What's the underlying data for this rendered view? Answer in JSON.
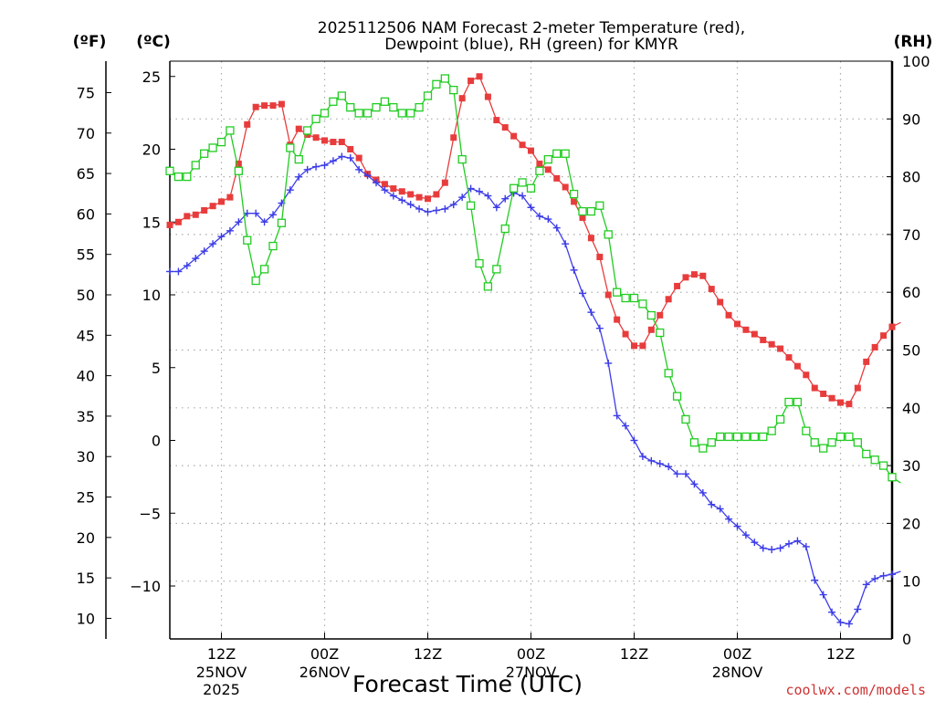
{
  "chart_data": {
    "type": "line",
    "title_line1": "2025112506 NAM Forecast 2-meter Temperature (red),",
    "title_line2": "Dewpoint (blue), RH (green) for KMYR",
    "unit_f": "(ºF)",
    "unit_c": "(ºC)",
    "unit_rh": "(RH)",
    "xlabel": "Forecast Time (UTC)",
    "credit": "coolwx.com/models",
    "x_range_hours": [
      6,
      90
    ],
    "ylim_c": [
      -12.5,
      26.5
    ],
    "ylim_rh": [
      0,
      100
    ],
    "grid": true,
    "x_ticks": [
      {
        "hour": 12,
        "label": "12Z",
        "label2": "25NOV",
        "label3": "2025"
      },
      {
        "hour": 24,
        "label": "00Z",
        "label2": "26NOV",
        "label3": ""
      },
      {
        "hour": 36,
        "label": "12Z",
        "label2": "",
        "label3": ""
      },
      {
        "hour": 48,
        "label": "00Z",
        "label2": "27NOV",
        "label3": ""
      },
      {
        "hour": 60,
        "label": "12Z",
        "label2": "",
        "label3": ""
      },
      {
        "hour": 72,
        "label": "00Z",
        "label2": "28NOV",
        "label3": ""
      },
      {
        "hour": 84,
        "label": "12Z",
        "label2": "",
        "label3": ""
      }
    ],
    "y_ticks_c": [
      "25",
      "20",
      "15",
      "10",
      "5",
      "0",
      "−5",
      "−10"
    ],
    "y_ticks_f": [
      "75",
      "70",
      "65",
      "60",
      "55",
      "50",
      "45",
      "40",
      "35",
      "30",
      "25",
      "20",
      "15",
      "10"
    ],
    "y_ticks_rh": [
      "100",
      "90",
      "80",
      "70",
      "60",
      "50",
      "40",
      "30",
      "20",
      "10",
      "0"
    ],
    "series": [
      {
        "name": "Temperature",
        "color": "#e83c3c",
        "marker": "filled-square",
        "unit": "C",
        "values": [
          14.8,
          15.0,
          15.4,
          15.5,
          15.8,
          16.1,
          16.4,
          16.7,
          19.0,
          21.7,
          22.9,
          23.0,
          23.0,
          23.1,
          20.3,
          21.4,
          21.0,
          20.8,
          20.6,
          20.5,
          20.5,
          20.0,
          19.4,
          18.3,
          17.9,
          17.6,
          17.3,
          17.1,
          16.9,
          16.7,
          16.6,
          16.9,
          17.7,
          20.8,
          23.5,
          24.7,
          25.0,
          23.6,
          22.0,
          21.5,
          20.9,
          20.3,
          19.9,
          19.0,
          18.6,
          18.0,
          17.4,
          16.4,
          15.3,
          13.9,
          12.6,
          10.0,
          8.3,
          7.3,
          6.5,
          6.5,
          7.6,
          8.6,
          9.7,
          10.6,
          11.2,
          11.4,
          11.3,
          10.4,
          9.5,
          8.6,
          8.0,
          7.6,
          7.3,
          6.9,
          6.6,
          6.3,
          5.7,
          5.1,
          4.5,
          3.6,
          3.2,
          2.9,
          2.6,
          2.5,
          3.6,
          5.4,
          6.4,
          7.2,
          7.8,
          8.1
        ]
      },
      {
        "name": "Dewpoint",
        "color": "#3c3ce8",
        "marker": "plus",
        "unit": "C",
        "values": [
          11.6,
          11.6,
          12.0,
          12.5,
          13.0,
          13.5,
          14.0,
          14.4,
          15.0,
          15.6,
          15.6,
          15.0,
          15.5,
          16.3,
          17.2,
          18.1,
          18.6,
          18.8,
          18.9,
          19.2,
          19.5,
          19.4,
          18.6,
          18.2,
          17.7,
          17.2,
          16.8,
          16.5,
          16.2,
          15.9,
          15.7,
          15.8,
          15.9,
          16.2,
          16.7,
          17.3,
          17.1,
          16.8,
          16.0,
          16.6,
          17.0,
          16.8,
          16.0,
          15.4,
          15.2,
          14.6,
          13.5,
          11.7,
          10.1,
          8.8,
          7.7,
          5.3,
          1.7,
          1.0,
          0,
          -1.1,
          -1.4,
          -1.6,
          -1.8,
          -2.3,
          -2.3,
          -3.0,
          -3.6,
          -4.4,
          -4.7,
          -5.4,
          -5.9,
          -6.5,
          -7.0,
          -7.4,
          -7.5,
          -7.4,
          -7.1,
          -6.9,
          -7.3,
          -9.6,
          -10.6,
          -11.8,
          -12.5,
          -12.6,
          -11.6,
          -9.9,
          -9.5,
          -9.3,
          -9.2,
          -9.0
        ]
      },
      {
        "name": "RH",
        "color": "#22cc22",
        "marker": "open-square",
        "unit": "%",
        "values": [
          81,
          80,
          80,
          82,
          84,
          85,
          86,
          88,
          81,
          69,
          62,
          64,
          68,
          72,
          85,
          83,
          88,
          90,
          91,
          93,
          94,
          92,
          91,
          91,
          92,
          93,
          92,
          91,
          91,
          92,
          94,
          96,
          97,
          95,
          83,
          75,
          65,
          61,
          64,
          71,
          78,
          79,
          78,
          81,
          83,
          84,
          84,
          77,
          74,
          74,
          75,
          70,
          60,
          59,
          59,
          58,
          56,
          53,
          46,
          42,
          38,
          34,
          33,
          34,
          35,
          35,
          35,
          35,
          35,
          35,
          36,
          38,
          41,
          41,
          36,
          34,
          33,
          34,
          35,
          35,
          34,
          32,
          31,
          30,
          28,
          27
        ]
      }
    ]
  }
}
